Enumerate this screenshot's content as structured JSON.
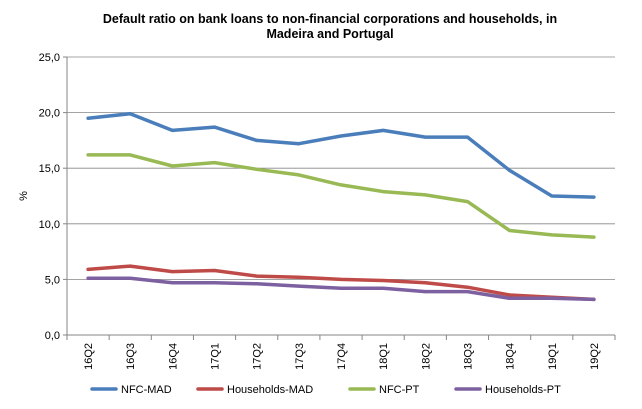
{
  "chart_data": {
    "type": "line",
    "title_lines": [
      "Default ratio on bank loans to non-financial corporations  and households,  in",
      "Madeira and Portugal"
    ],
    "xlabel": "",
    "ylabel": "%",
    "ylim": [
      0,
      25
    ],
    "y_ticks": [
      "0,0",
      "5,0",
      "10,0",
      "15,0",
      "20,0",
      "25,0"
    ],
    "grid": "horizontal",
    "legend_position": "bottom",
    "categories": [
      "16Q2",
      "16Q3",
      "16Q4",
      "17Q1",
      "17Q2",
      "17Q3",
      "17Q4",
      "18Q1",
      "18Q2",
      "18Q3",
      "18Q4",
      "19Q1",
      "19Q2"
    ],
    "series": [
      {
        "name": "NFC-MAD",
        "color": "#4a7ebb",
        "values": [
          19.5,
          19.9,
          18.4,
          18.7,
          17.5,
          17.2,
          17.9,
          18.4,
          17.8,
          17.8,
          14.8,
          12.5,
          12.4
        ]
      },
      {
        "name": "Households-MAD",
        "color": "#be4b48",
        "values": [
          5.9,
          6.2,
          5.7,
          5.8,
          5.3,
          5.2,
          5.0,
          4.9,
          4.7,
          4.3,
          3.6,
          3.4,
          3.2
        ]
      },
      {
        "name": "NFC-PT",
        "color": "#98b954",
        "values": [
          16.2,
          16.2,
          15.2,
          15.5,
          14.9,
          14.4,
          13.5,
          12.9,
          12.6,
          12.0,
          9.4,
          9.0,
          8.8
        ]
      },
      {
        "name": "Households-PT",
        "color": "#7d60a0",
        "values": [
          5.1,
          5.1,
          4.7,
          4.7,
          4.6,
          4.4,
          4.2,
          4.2,
          3.9,
          3.9,
          3.3,
          3.3,
          3.2
        ]
      }
    ]
  }
}
